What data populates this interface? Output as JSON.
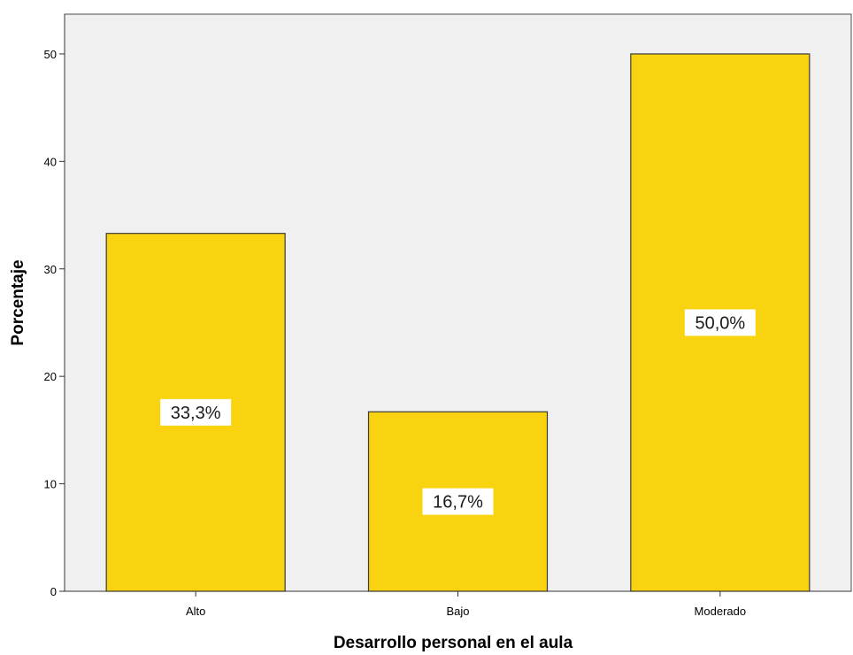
{
  "chart_data": {
    "type": "bar",
    "title": "",
    "xlabel": "Desarrollo personal en el aula",
    "ylabel": "Porcentaje",
    "categories": [
      "Alto",
      "Bajo",
      "Moderado"
    ],
    "values": [
      33.3,
      16.7,
      50.0
    ],
    "data_labels": [
      "33,3%",
      "16,7%",
      "50,0%"
    ],
    "y_ticks": [
      0,
      10,
      20,
      30,
      40,
      50
    ],
    "y_tick_labels": [
      "0",
      "10",
      "20",
      "30",
      "40",
      "50"
    ],
    "ylim": [
      0,
      53.7
    ],
    "grid": false,
    "legend": "none",
    "colors": {
      "bar_fill": "#f9d30f",
      "bar_stroke": "#3a3a3a",
      "plot_background": "#f0f0f0",
      "label_background": "#ffffff"
    }
  }
}
